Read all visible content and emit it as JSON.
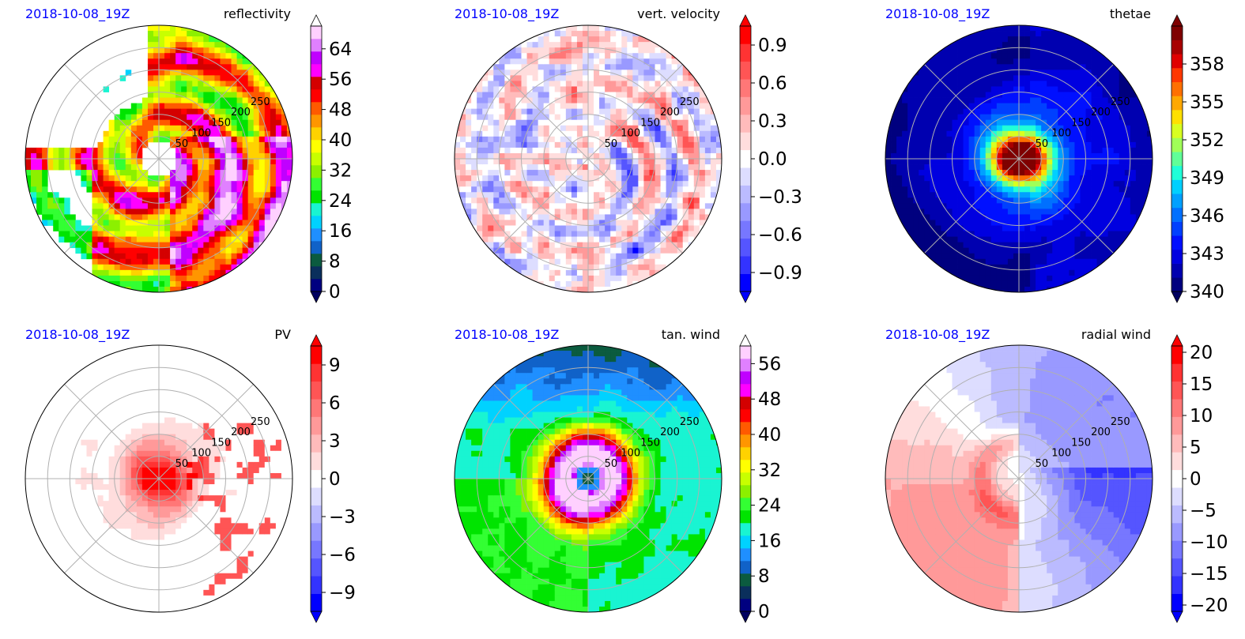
{
  "chart_data": [
    {
      "type": "heatmap",
      "projection": "polar",
      "date_label": "2018-10-08_19Z",
      "title": "reflectivity",
      "ring_labels": [
        "50",
        "100",
        "150",
        "200",
        "250"
      ],
      "colormap": "nws_reflectivity",
      "colorbar_ticks": [
        "0",
        "8",
        "16",
        "24",
        "32",
        "40",
        "48",
        "56",
        "64"
      ],
      "colorbar_range": [
        0,
        70
      ],
      "colorbar_extend": "both",
      "field": "reflectivity_bands"
    },
    {
      "type": "heatmap",
      "projection": "polar",
      "date_label": "2018-10-08_19Z",
      "title": "vert. velocity",
      "ring_labels": [
        "50",
        "100",
        "150",
        "200",
        "250"
      ],
      "colormap": "bwr",
      "colorbar_ticks": [
        "0.9",
        "0.6",
        "0.3",
        "0.0",
        "−0.3",
        "−0.6",
        "−0.9"
      ],
      "colorbar_range": [
        -1.05,
        1.05
      ],
      "colorbar_extend": "both",
      "field": "speckle_red_blue"
    },
    {
      "type": "heatmap",
      "projection": "polar",
      "date_label": "2018-10-08_19Z",
      "title": "thetae",
      "ring_labels": [
        "50",
        "100",
        "150",
        "200",
        "250"
      ],
      "colormap": "jet",
      "colorbar_ticks": [
        "358",
        "355",
        "352",
        "349",
        "346",
        "343",
        "340"
      ],
      "colorbar_range": [
        340,
        361
      ],
      "colorbar_extend": "both",
      "field": "warm_core"
    },
    {
      "type": "heatmap",
      "projection": "polar",
      "date_label": "2018-10-08_19Z",
      "title": "PV",
      "ring_labels": [
        "50",
        "100",
        "150",
        "200",
        "250"
      ],
      "colormap": "bwr",
      "colorbar_ticks": [
        "9",
        "6",
        "3",
        "0",
        "−3",
        "−6",
        "−9"
      ],
      "colorbar_range": [
        -10.5,
        10.5
      ],
      "colorbar_extend": "both",
      "field": "central_max"
    },
    {
      "type": "heatmap",
      "projection": "polar",
      "date_label": "2018-10-08_19Z",
      "title": "tan. wind",
      "ring_labels": [
        "50",
        "100",
        "150",
        "200",
        "250"
      ],
      "colormap": "nws_reflectivity",
      "colorbar_ticks": [
        "56",
        "48",
        "40",
        "32",
        "24",
        "16",
        "8",
        "0"
      ],
      "colorbar_range": [
        0,
        60
      ],
      "colorbar_extend": "both",
      "field": "eyewall_ring"
    },
    {
      "type": "heatmap",
      "projection": "polar",
      "date_label": "2018-10-08_19Z",
      "title": "radial wind",
      "ring_labels": [
        "50",
        "100",
        "150",
        "200",
        "250"
      ],
      "colormap": "bwr",
      "colorbar_ticks": [
        "20",
        "15",
        "10",
        "5",
        "0",
        "−5",
        "−10",
        "−15",
        "−20"
      ],
      "colorbar_range": [
        -21,
        21
      ],
      "colorbar_extend": "both",
      "field": "inflow_outflow"
    }
  ]
}
